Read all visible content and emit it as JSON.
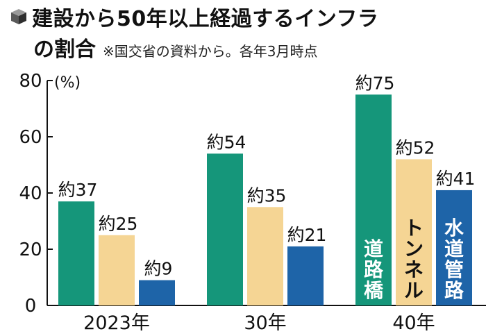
{
  "title": "建設から50年以上経過するインフラ",
  "title_line2": "の割合",
  "subtitle": "※国交省の資料から。各年3月時点",
  "colors": {
    "道路橋": "#15967a",
    "トンネル": "#f5d594",
    "水道管路": "#1e64a8",
    "axis": "#111111"
  },
  "chart_data": {
    "type": "bar",
    "title": "建設から50年以上経過するインフラの割合",
    "ylabel": "(%)",
    "ylim": [
      0,
      80
    ],
    "yticks": [
      "0",
      "20",
      "40",
      "60",
      "80"
    ],
    "categories": [
      "2023年",
      "30年",
      "40年"
    ],
    "series": [
      {
        "name": "道路橋",
        "values": [
          37,
          54,
          75
        ],
        "labels": [
          "約37",
          "約54",
          "約75"
        ]
      },
      {
        "name": "トンネル",
        "values": [
          25,
          35,
          52
        ],
        "labels": [
          "約25",
          "約35",
          "約52"
        ]
      },
      {
        "name": "水道管路",
        "values": [
          9,
          21,
          41
        ],
        "labels": [
          "約9",
          "約21",
          "約41"
        ]
      }
    ]
  }
}
